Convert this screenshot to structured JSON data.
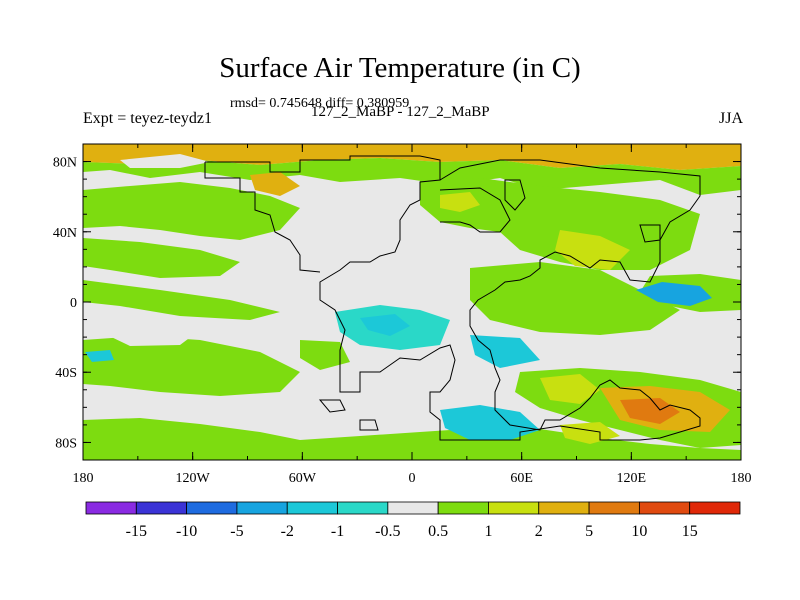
{
  "title": "Surface Air Temperature (in C)",
  "stats": "rmsd= 0.745648 diff= 0.380959",
  "experiment": "Expt = teyez-teydz1",
  "cases": "127_2_MaBP - 127_2_MaBP",
  "season": "JJA",
  "axes": {
    "lat_ticks": [
      "80N",
      "40N",
      "0",
      "40S",
      "80S"
    ],
    "lon_ticks": [
      "180",
      "120W",
      "60W",
      "0",
      "60E",
      "120E",
      "180"
    ]
  },
  "colorbar": {
    "levels": [
      "-15",
      "-10",
      "-5",
      "-2",
      "-1",
      "-0.5",
      "0.5",
      "1",
      "2",
      "5",
      "10",
      "15"
    ],
    "colors": [
      "#8a2be2",
      "#3b33d6",
      "#1e6be0",
      "#17a4e0",
      "#1cc8d8",
      "#2ad8c8",
      "#e8e8e8",
      "#7ddc10",
      "#c8e010",
      "#e0b010",
      "#e07a10",
      "#e04a10",
      "#e02808"
    ]
  },
  "palette": {
    "neutral": "#e8e8e8",
    "green": "#7ddc10",
    "yellow": "#c8e010",
    "orange": "#e0b010",
    "cyan": "#1cc8d8",
    "teal": "#2ad8c8",
    "blue": "#17a4e0"
  }
}
